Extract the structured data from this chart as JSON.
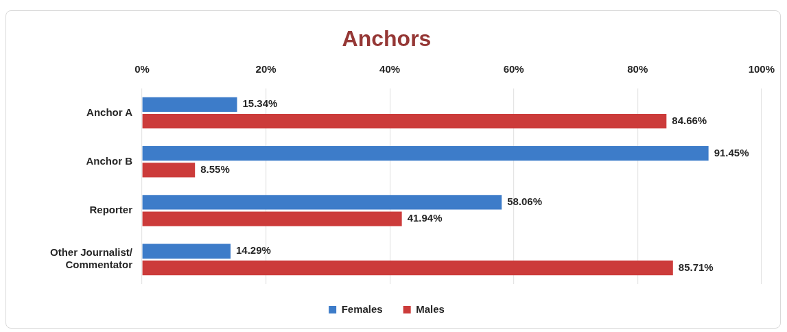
{
  "chart_data": {
    "type": "bar",
    "orientation": "horizontal",
    "title": "Anchors",
    "categories": [
      "Anchor A",
      "Anchor B",
      "Reporter",
      "Other Journalist/ Commentator"
    ],
    "series": [
      {
        "name": "Females",
        "color": "#3d7cc9",
        "values": [
          15.34,
          91.45,
          58.06,
          14.29
        ],
        "value_labels": [
          "15.34%",
          "91.45%",
          "58.06%",
          "14.29%"
        ]
      },
      {
        "name": "Males",
        "color": "#cc3b3a",
        "values": [
          84.66,
          8.55,
          41.94,
          85.71
        ],
        "value_labels": [
          "84.66%",
          "8.55%",
          "41.94%",
          "85.71%"
        ]
      }
    ],
    "xlim": [
      0,
      100
    ],
    "xticks": [
      {
        "value": 0,
        "label": "0%"
      },
      {
        "value": 20,
        "label": "20%"
      },
      {
        "value": 40,
        "label": "40%"
      },
      {
        "value": 60,
        "label": "60%"
      },
      {
        "value": 80,
        "label": "80%"
      },
      {
        "value": 100,
        "label": "100%"
      }
    ],
    "grid": "x",
    "legend": "bottom"
  }
}
